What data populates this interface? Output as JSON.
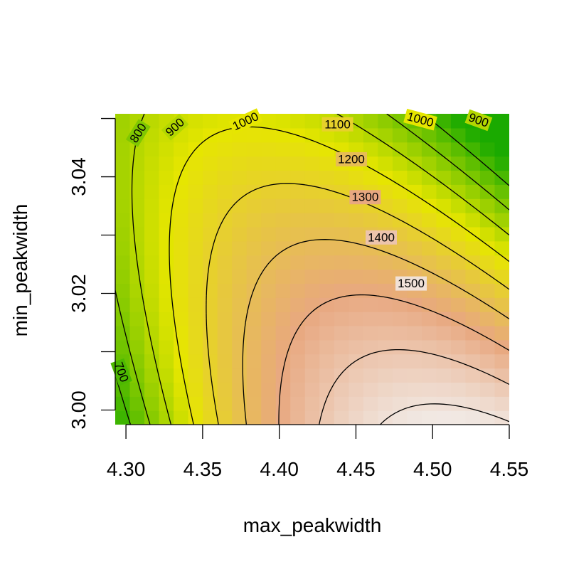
{
  "chart_data": {
    "type": "heatmap",
    "xlabel": "max_peakwidth",
    "ylabel": "min_peakwidth",
    "xlim": [
      4.293,
      4.55
    ],
    "ylim": [
      2.9975,
      3.0508
    ],
    "x_ticks": [
      "4.30",
      "4.35",
      "4.40",
      "4.45",
      "4.50",
      "4.55"
    ],
    "y_ticks": [
      "3.00",
      "3.02",
      "3.04"
    ],
    "color_scale": {
      "low": "#1aaa00",
      "mid": "#e6e600",
      "mid_value": 1000,
      "upper_mid": "#e8a880",
      "high": "#f2f2f2",
      "min": 600,
      "max": 1560
    },
    "contour_levels": [
      700,
      800,
      900,
      1000,
      1100,
      1200,
      1300,
      1400,
      1500
    ],
    "contour_labels": [
      {
        "text": "700",
        "level": 700,
        "x": 4.297,
        "y": 3.0065,
        "angle": 70
      },
      {
        "text": "800",
        "level": 800,
        "x": 4.308,
        "y": 3.0475,
        "angle": -58
      },
      {
        "text": "900",
        "level": 900,
        "x": 4.332,
        "y": 3.0485,
        "angle": -42
      },
      {
        "text": "1000",
        "level": 1000,
        "x": 4.378,
        "y": 3.0495,
        "angle": -25
      },
      {
        "text": "1100",
        "level": 1100,
        "x": 4.438,
        "y": 3.049,
        "angle": 0
      },
      {
        "text": "1200",
        "level": 1200,
        "x": 4.447,
        "y": 3.043,
        "angle": 0
      },
      {
        "text": "1300",
        "level": 1300,
        "x": 4.456,
        "y": 3.0365,
        "angle": 0
      },
      {
        "text": "1400",
        "level": 1400,
        "x": 4.4665,
        "y": 3.0296,
        "angle": 0
      },
      {
        "text": "1500",
        "level": 1500,
        "x": 4.486,
        "y": 3.0217,
        "angle": 0
      },
      {
        "text": "1000",
        "level": 1000,
        "x": 4.492,
        "y": 3.0498,
        "angle": 15
      },
      {
        "text": "900",
        "level": 900,
        "x": 4.53,
        "y": 3.0497,
        "angle": 20
      }
    ]
  }
}
